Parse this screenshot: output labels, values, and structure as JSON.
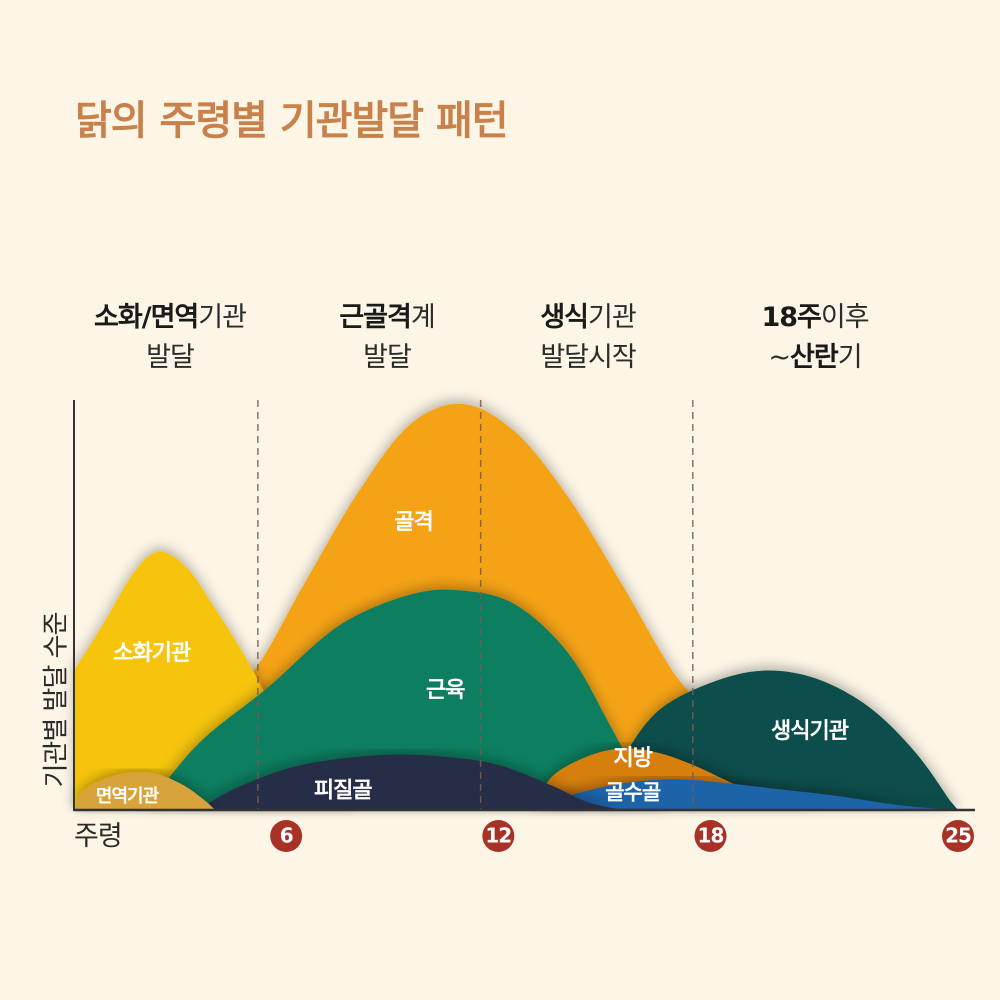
{
  "title": "닭의 주령별 기관발달 패턴",
  "stages": [
    {
      "bold": "소화/면역",
      "rest": "기관",
      "line2": "발달"
    },
    {
      "bold": "근골격",
      "rest": "계",
      "line2": "발달"
    },
    {
      "bold": "생식",
      "rest": "기관",
      "line2": "발달시작"
    },
    {
      "bold": "18주",
      "rest": "이후",
      "line2_prefix": "~",
      "line2_bold": "산란",
      "line2_rest": "기"
    }
  ],
  "chart_data": {
    "type": "area",
    "ylabel": "기관별 발달 수준",
    "xlabel": "주령",
    "xlim": [
      0,
      25
    ],
    "ylim": [
      0,
      100
    ],
    "x_ticks": [
      6,
      12,
      18,
      25
    ],
    "dividers": [
      5.2,
      11.5,
      17.5
    ],
    "series": [
      {
        "name": "골격",
        "color": "#f5a318",
        "points": [
          [
            0,
            0
          ],
          [
            1.5,
            10
          ],
          [
            3.5,
            24
          ],
          [
            5,
            33
          ],
          [
            6.5,
            55
          ],
          [
            8,
            77
          ],
          [
            9.5,
            94
          ],
          [
            11,
            99
          ],
          [
            12.5,
            92
          ],
          [
            14,
            76
          ],
          [
            15.5,
            55
          ],
          [
            17,
            33
          ],
          [
            18,
            25
          ],
          [
            19.5,
            18
          ],
          [
            21,
            10
          ],
          [
            22.5,
            4
          ],
          [
            25,
            0
          ]
        ]
      },
      {
        "name": "소화기관",
        "color": "#f6c40e",
        "points": [
          [
            0,
            34
          ],
          [
            0.8,
            45
          ],
          [
            1.7,
            58
          ],
          [
            2.4,
            63
          ],
          [
            3.2,
            59
          ],
          [
            4.0,
            49
          ],
          [
            4.8,
            38
          ],
          [
            5.5,
            27
          ],
          [
            6.2,
            17
          ],
          [
            7,
            8
          ],
          [
            8,
            0
          ]
        ]
      },
      {
        "name": "근육",
        "color": "#087e61",
        "points": [
          [
            2,
            0
          ],
          [
            3.5,
            16
          ],
          [
            5.5,
            30
          ],
          [
            7.5,
            45
          ],
          [
            9.5,
            52.5
          ],
          [
            11,
            53.5
          ],
          [
            12.5,
            50
          ],
          [
            14,
            38
          ],
          [
            15.2,
            20
          ],
          [
            16.2,
            4
          ],
          [
            16.8,
            0
          ]
        ]
      },
      {
        "name": "생식기관",
        "color": "#0a4e4b",
        "points": [
          [
            15,
            0
          ],
          [
            15.5,
            12
          ],
          [
            16.5,
            24
          ],
          [
            18,
            31
          ],
          [
            19.5,
            34
          ],
          [
            21,
            32
          ],
          [
            22.5,
            25
          ],
          [
            23.8,
            14
          ],
          [
            24.8,
            2
          ],
          [
            25,
            0
          ]
        ]
      },
      {
        "name": "지방",
        "color": "#d77f0a",
        "points": [
          [
            13,
            0
          ],
          [
            13.5,
            8
          ],
          [
            14.5,
            13
          ],
          [
            15.5,
            15
          ],
          [
            16.5,
            14
          ],
          [
            17.5,
            11
          ],
          [
            18.5,
            7
          ],
          [
            19.5,
            3
          ],
          [
            21,
            0
          ]
        ]
      },
      {
        "name": "골수골",
        "color": "#1d63a8",
        "points": [
          [
            13,
            0
          ],
          [
            14,
            3.5
          ],
          [
            15.5,
            6.5
          ],
          [
            17,
            7.5
          ],
          [
            18.5,
            6.5
          ],
          [
            20,
            5
          ],
          [
            21.5,
            3.5
          ],
          [
            23.5,
            1
          ],
          [
            25,
            0
          ]
        ]
      },
      {
        "name": "피질골",
        "color": "#282d47",
        "points": [
          [
            3.5,
            0
          ],
          [
            4.5,
            5
          ],
          [
            6,
            10
          ],
          [
            7.5,
            12.5
          ],
          [
            9,
            13.5
          ],
          [
            10.5,
            13
          ],
          [
            12,
            11
          ],
          [
            13.5,
            6
          ],
          [
            14.5,
            2
          ],
          [
            15.5,
            0
          ]
        ]
      },
      {
        "name": "면역기관",
        "color": "#d9a33a",
        "points": [
          [
            0,
            0
          ],
          [
            0.3,
            5
          ],
          [
            1.2,
            8.5
          ],
          [
            2.2,
            9
          ],
          [
            3.0,
            6.5
          ],
          [
            3.6,
            3
          ],
          [
            4,
            0
          ]
        ]
      }
    ],
    "labels": [
      {
        "text": "골격",
        "x": 9.6,
        "y": 70,
        "size": 22
      },
      {
        "text": "소화기관",
        "x": 2.2,
        "y": 38,
        "size": 22
      },
      {
        "text": "근육",
        "x": 10.5,
        "y": 29,
        "size": 22
      },
      {
        "text": "생식기관",
        "x": 20.8,
        "y": 19,
        "size": 22
      },
      {
        "text": "지방",
        "x": 15.8,
        "y": 12.5,
        "size": 22
      },
      {
        "text": "골수골",
        "x": 15.8,
        "y": 4,
        "size": 21
      },
      {
        "text": "피질골",
        "x": 7.6,
        "y": 4.5,
        "size": 22
      },
      {
        "text": "면역기관",
        "x": 1.5,
        "y": 3.2,
        "size": 18
      }
    ]
  }
}
